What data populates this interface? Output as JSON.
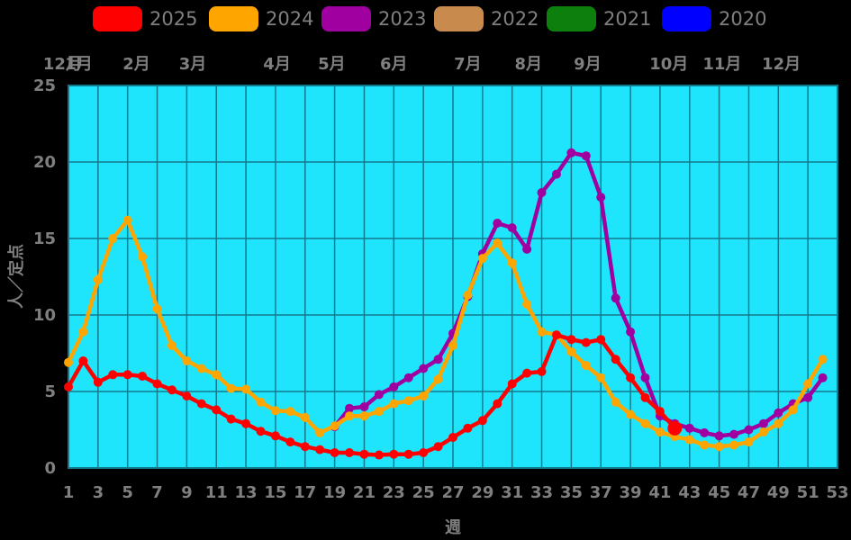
{
  "legend": {
    "items": [
      {
        "label": "2025",
        "color": "#ff0000"
      },
      {
        "label": "2024",
        "color": "#ffa500"
      },
      {
        "label": "2023",
        "color": "#a000a0"
      },
      {
        "label": "2022",
        "color": "#c98a4e"
      },
      {
        "label": "2021",
        "color": "#0d7f0d"
      },
      {
        "label": "2020",
        "color": "#0000ff"
      }
    ]
  },
  "chart_data": {
    "type": "line",
    "title": "",
    "xlabel": "週",
    "ylabel": "人／定点",
    "xlim": [
      1,
      53
    ],
    "ylim": [
      0,
      25
    ],
    "x_ticks": [
      1,
      3,
      5,
      7,
      9,
      11,
      13,
      15,
      17,
      19,
      21,
      23,
      25,
      27,
      29,
      31,
      33,
      35,
      37,
      39,
      41,
      43,
      45,
      47,
      49,
      51,
      53
    ],
    "y_ticks": [
      0,
      5,
      10,
      15,
      20,
      25
    ],
    "grid": true,
    "plot_bg_color": "#1fe5fc",
    "grid_color": "#15798d",
    "text_color": "#7f7f7f",
    "month_labels": [
      {
        "text": "12月",
        "week": 0.6
      },
      {
        "text": "1月",
        "week": 1.7
      },
      {
        "text": "2月",
        "week": 5.6
      },
      {
        "text": "3月",
        "week": 9.4
      },
      {
        "text": "4月",
        "week": 15.1
      },
      {
        "text": "5月",
        "week": 18.8
      },
      {
        "text": "6月",
        "week": 23.0
      },
      {
        "text": "7月",
        "week": 28.0
      },
      {
        "text": "8月",
        "week": 32.1
      },
      {
        "text": "9月",
        "week": 36.1
      },
      {
        "text": "10月",
        "week": 41.6
      },
      {
        "text": "11月",
        "week": 45.2
      },
      {
        "text": "12月",
        "week": 49.2
      }
    ],
    "series": [
      {
        "name": "2023",
        "color": "#a000a0",
        "start_week": 19,
        "values": [
          2.7,
          3.9,
          4.0,
          4.8,
          5.3,
          5.9,
          6.5,
          7.1,
          8.8,
          11.2,
          14.0,
          16.0,
          15.7,
          14.3,
          18.0,
          19.2,
          20.6,
          20.4,
          17.7,
          11.1,
          8.9,
          5.9,
          3.4,
          2.9,
          2.6,
          2.3,
          2.1,
          2.2,
          2.5,
          2.9,
          3.6,
          4.2,
          4.6,
          5.9
        ]
      },
      {
        "name": "2024",
        "color": "#ffa500",
        "start_week": 1,
        "values": [
          6.9,
          8.9,
          12.3,
          15.0,
          16.2,
          13.8,
          10.4,
          8.0,
          7.0,
          6.5,
          6.1,
          5.2,
          5.15,
          4.3,
          3.75,
          3.7,
          3.3,
          2.3,
          2.75,
          3.4,
          3.4,
          3.7,
          4.2,
          4.4,
          4.7,
          5.8,
          8.0,
          11.3,
          13.7,
          14.7,
          13.4,
          10.7,
          8.9,
          8.7,
          7.6,
          6.7,
          5.9,
          4.3,
          3.5,
          2.9,
          2.35,
          2.05,
          1.85,
          1.5,
          1.4,
          1.5,
          1.7,
          2.35,
          2.9,
          3.8,
          5.5,
          7.1
        ]
      },
      {
        "name": "2025",
        "color": "#ff0000",
        "start_week": 1,
        "last_point_emphasis": true,
        "values": [
          5.3,
          7.0,
          5.6,
          6.1,
          6.1,
          6.0,
          5.5,
          5.1,
          4.7,
          4.2,
          3.8,
          3.2,
          2.9,
          2.4,
          2.1,
          1.7,
          1.4,
          1.2,
          1.0,
          1.0,
          0.9,
          0.85,
          0.9,
          0.9,
          1.0,
          1.4,
          2.0,
          2.6,
          3.1,
          4.2,
          5.5,
          6.2,
          6.3,
          8.7,
          8.4,
          8.2,
          8.4,
          7.1,
          5.9,
          4.6,
          3.7,
          2.6
        ]
      }
    ]
  }
}
